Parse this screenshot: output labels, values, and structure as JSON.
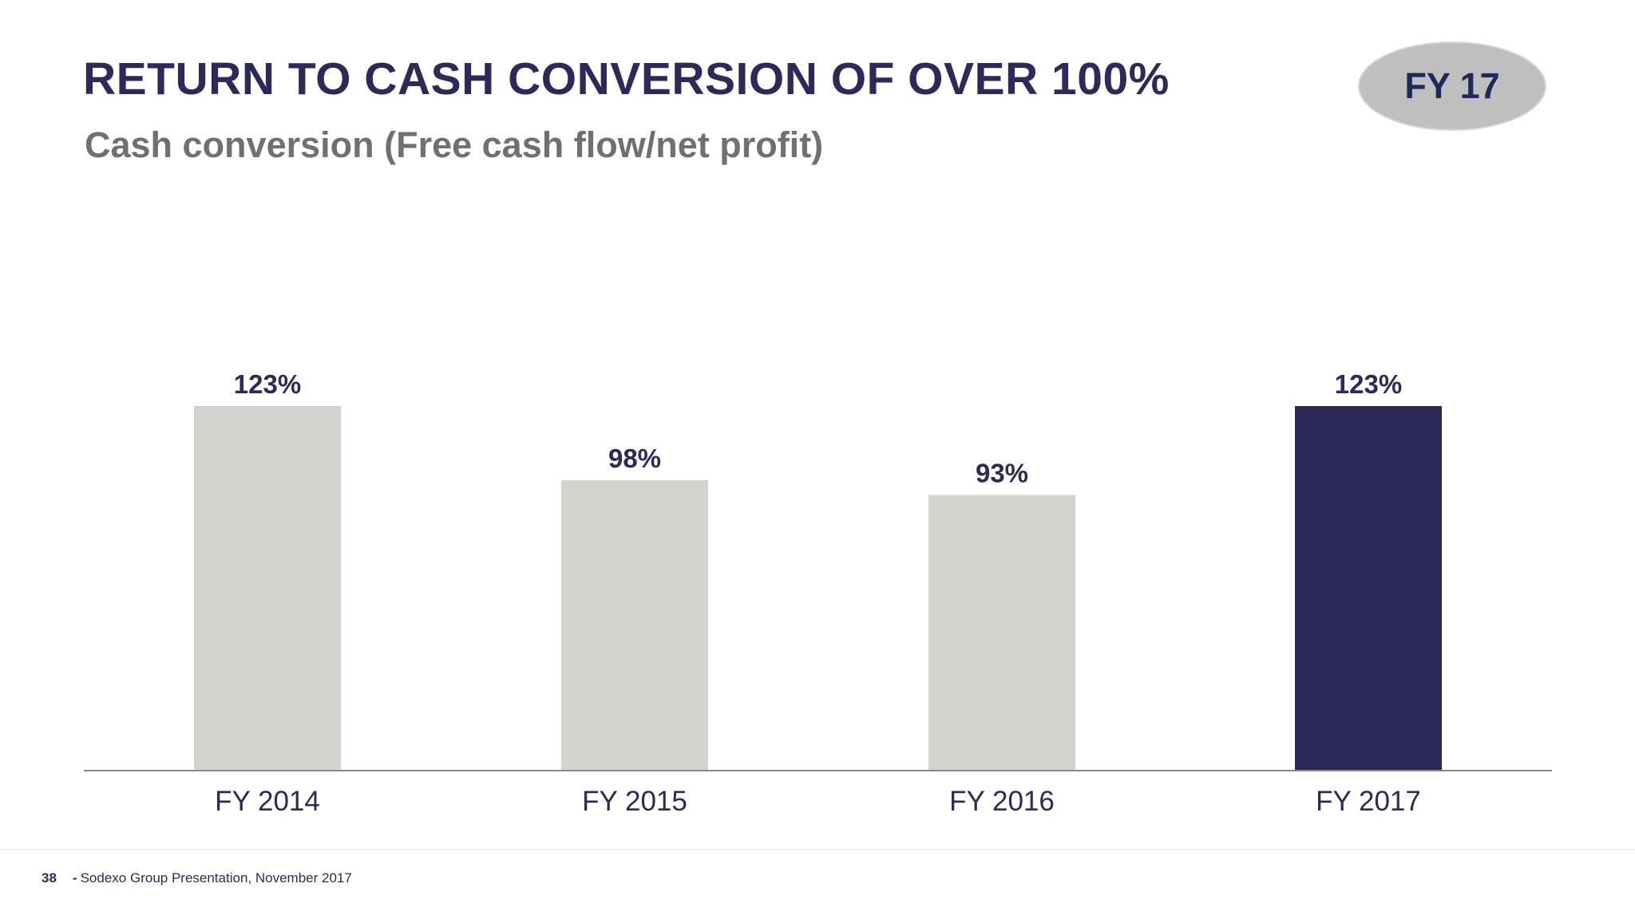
{
  "slide": {
    "title": "RETURN TO CASH CONVERSION OF OVER 100%",
    "subtitle": "Cash conversion (Free cash flow/net profit)",
    "badge": "FY 17"
  },
  "colors": {
    "title": "#2b2a5a",
    "subtitle": "#707070",
    "bar_default": "#d4d2cc",
    "bar_highlight": "#2b2a5a",
    "badge_fill": "#bfbfbf",
    "axis": "#888888"
  },
  "chart_data": {
    "type": "bar",
    "title": "",
    "xlabel": "",
    "ylabel": "",
    "categories": [
      "FY 2014",
      "FY 2015",
      "FY 2016",
      "FY 2017"
    ],
    "values": [
      123,
      98,
      93,
      123
    ],
    "value_labels": [
      "123%",
      "98%",
      "93%",
      "123%"
    ],
    "unit": "%",
    "highlight_index": 3,
    "ylim": [
      0,
      123
    ],
    "grid": false,
    "legend": "none"
  },
  "footer": {
    "page_number": "38",
    "separator": "-",
    "text": "Sodexo Group Presentation, November 2017"
  }
}
